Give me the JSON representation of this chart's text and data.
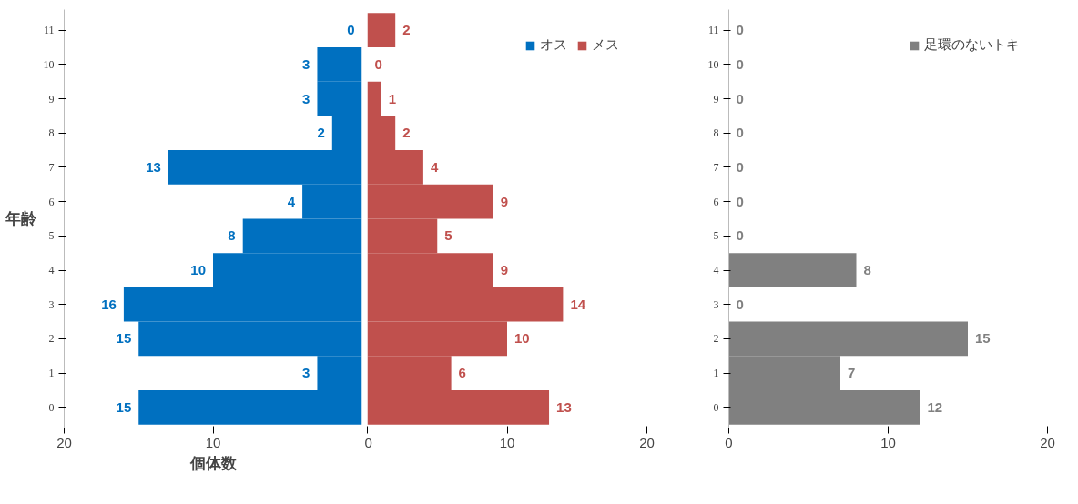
{
  "chart_data": [
    {
      "type": "bar",
      "orientation": "horizontal",
      "categories": [
        "11",
        "10",
        "9",
        "8",
        "7",
        "6",
        "5",
        "4",
        "3",
        "2",
        "1",
        "0"
      ],
      "series": [
        {
          "name": "オス",
          "color": "#0070c0",
          "values": [
            0,
            3,
            3,
            2,
            13,
            4,
            8,
            10,
            16,
            15,
            3,
            15
          ]
        }
      ],
      "data_labels": true,
      "xlim": [
        20,
        0
      ],
      "xticks": [
        20,
        10
      ],
      "xlabel": "個体数",
      "ylabel": "年齢",
      "grid": false
    },
    {
      "type": "bar",
      "orientation": "horizontal",
      "categories": [
        "11",
        "10",
        "9",
        "8",
        "7",
        "6",
        "5",
        "4",
        "3",
        "2",
        "1",
        "0"
      ],
      "series": [
        {
          "name": "メス",
          "color": "#c0504d",
          "values": [
            2,
            0,
            1,
            2,
            4,
            9,
            5,
            9,
            14,
            10,
            6,
            13
          ]
        }
      ],
      "data_labels": true,
      "xlim": [
        0,
        20
      ],
      "xticks": [
        0,
        10,
        20
      ],
      "tick_labels": "x",
      "legend": "top right",
      "grid": false
    },
    {
      "type": "bar",
      "orientation": "horizontal",
      "categories": [
        "11",
        "10",
        "9",
        "8",
        "7",
        "6",
        "5",
        "4",
        "3",
        "2",
        "1",
        "0"
      ],
      "series": [
        {
          "name": "足環のないトキ",
          "color": "#808080",
          "values": [
            0,
            0,
            0,
            0,
            0,
            0,
            0,
            8,
            0,
            15,
            7,
            12
          ]
        }
      ],
      "data_labels": true,
      "xlim": [
        0,
        20
      ],
      "xticks": [
        0,
        10,
        20
      ],
      "legend": "top right",
      "grid": false
    }
  ]
}
